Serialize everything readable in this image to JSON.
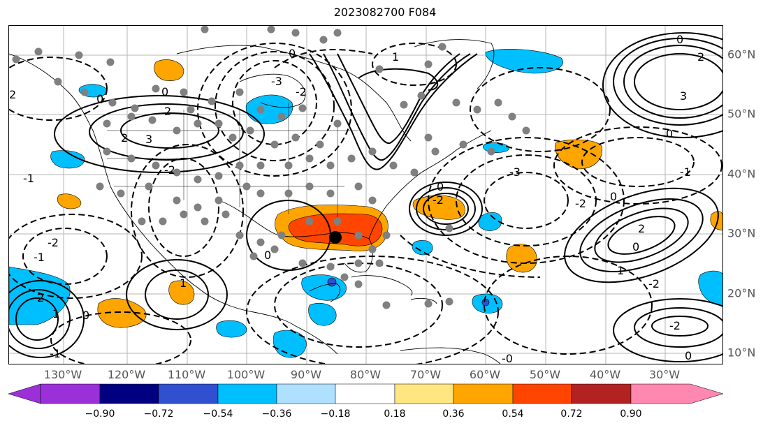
{
  "title": "2023082700 F084",
  "lon_labels": [
    "130°W",
    "120°W",
    "110°W",
    "100°W",
    "90°W",
    "80°W",
    "70°W",
    "60°W",
    "50°W",
    "40°W",
    "30°W"
  ],
  "lat_labels": [
    "60°N",
    "50°N",
    "40°N",
    "30°N",
    "20°N",
    "10°N"
  ],
  "colorbar": {
    "ticks": [
      "−0.90",
      "−0.72",
      "−0.54",
      "−0.36",
      "−0.18",
      "0.18",
      "0.36",
      "0.54",
      "0.72",
      "0.90"
    ],
    "colors": [
      "#9b30d9",
      "#000080",
      "#3050d0",
      "#00bfff",
      "#b0e0ff",
      "#ffffff",
      "#ffe680",
      "#ffa500",
      "#ff4500",
      "#b22222",
      "#ff88b0"
    ]
  },
  "contour_labels": [
    "0",
    "1",
    "2",
    "3",
    "-1",
    "-2",
    "-3",
    "-0"
  ],
  "colors": {
    "positive_fill": "#ffa500",
    "strong_fill": "#ff4500",
    "negative_fill": "#00bfff",
    "contour": "#000000",
    "station": "#808080"
  }
}
